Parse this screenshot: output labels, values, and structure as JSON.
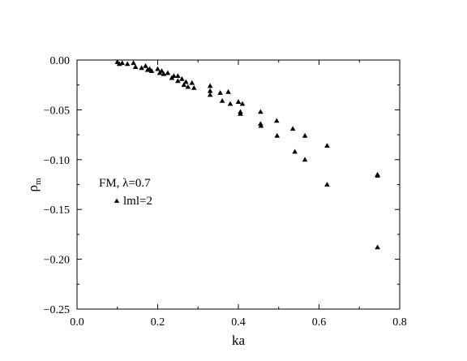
{
  "chart_data": {
    "type": "scatter",
    "title": "",
    "xlabel": "ka",
    "ylabel": "ρm",
    "ylabel_main": "ρ",
    "ylabel_sub": "m",
    "xlim": [
      0.0,
      0.8
    ],
    "ylim": [
      -0.25,
      0.0
    ],
    "x_ticks": [
      0.0,
      0.2,
      0.4,
      0.6,
      0.8
    ],
    "x_tick_labels": [
      "0.0",
      "0.2",
      "0.4",
      "0.6",
      "0.8"
    ],
    "y_ticks": [
      0.0,
      -0.05,
      -0.1,
      -0.15,
      -0.2,
      -0.25
    ],
    "y_tick_labels": [
      "0.00",
      "−0.05",
      "−0.10",
      "−0.15",
      "−0.20",
      "−0.25"
    ],
    "grid": false,
    "legend_title": "FM, λ=0.7",
    "legend_placement": "left",
    "color": "#000000",
    "marker": "triangle",
    "series": [
      {
        "name": "lml=2",
        "x": [
          0.1,
          0.105,
          0.112,
          0.125,
          0.14,
          0.145,
          0.16,
          0.17,
          0.175,
          0.18,
          0.185,
          0.2,
          0.205,
          0.21,
          0.215,
          0.225,
          0.235,
          0.24,
          0.25,
          0.25,
          0.26,
          0.265,
          0.27,
          0.275,
          0.285,
          0.29,
          0.33,
          0.33,
          0.33,
          0.355,
          0.36,
          0.375,
          0.38,
          0.4,
          0.405,
          0.405,
          0.41,
          0.455,
          0.455,
          0.456,
          0.495,
          0.496,
          0.535,
          0.54,
          0.565,
          0.565,
          0.62,
          0.62,
          0.745,
          0.745,
          0.745
        ],
        "y": [
          -0.002,
          -0.004,
          -0.003,
          -0.004,
          -0.003,
          -0.007,
          -0.008,
          -0.006,
          -0.01,
          -0.009,
          -0.011,
          -0.009,
          -0.013,
          -0.011,
          -0.014,
          -0.013,
          -0.018,
          -0.016,
          -0.016,
          -0.021,
          -0.019,
          -0.025,
          -0.022,
          -0.027,
          -0.023,
          -0.028,
          -0.026,
          -0.031,
          -0.035,
          -0.033,
          -0.041,
          -0.032,
          -0.044,
          -0.042,
          -0.052,
          -0.054,
          -0.044,
          -0.052,
          -0.064,
          -0.066,
          -0.061,
          -0.076,
          -0.069,
          -0.092,
          -0.076,
          -0.1,
          -0.086,
          -0.125,
          -0.115,
          -0.116,
          -0.188
        ]
      }
    ]
  }
}
